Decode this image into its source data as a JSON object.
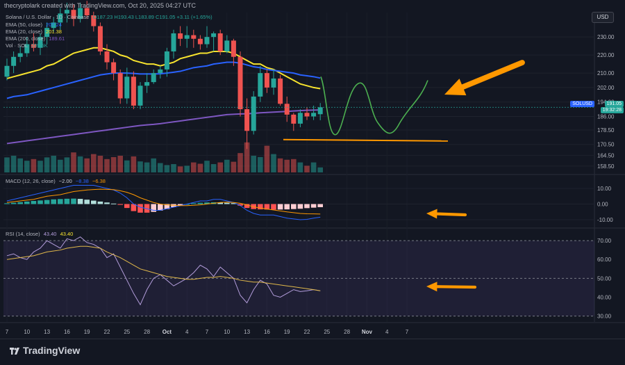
{
  "header": {
    "text": "thecryptolark created with TradingView.com, Oct 20, 2025 04:27 UTC"
  },
  "toolbar": {
    "currency_label": "USD"
  },
  "symbol": {
    "title": "Solana / U.S. Dollar · 1D · Coinbase",
    "ohlc_text": "O187.23 H193.43 L183.89 C191.05 +3.11 (+1.65%)"
  },
  "indicators": [
    {
      "label": "EMA (50, close)",
      "value": "207.24",
      "color": "#2962ff"
    },
    {
      "label": "EMA (20, close)",
      "value": "201.38",
      "color": "#f7e32e"
    },
    {
      "label": "EMA (200, close)",
      "value": "189.61",
      "color": "#7e57c2"
    },
    {
      "label": "Vol · SOL",
      "value": "209.5K",
      "color": "#26a69a"
    }
  ],
  "price_tag": {
    "symbol": "SOLUSD",
    "price": "191.05",
    "countdown": "19:32:28"
  },
  "macd_legend": {
    "label": "MACD (12, 26, close)",
    "values": [
      "−2.00",
      "−8.38",
      "−6.38"
    ],
    "colors": [
      "#d1d4dc",
      "#2962ff",
      "#ff9800"
    ]
  },
  "rsi_legend": {
    "label": "RSI (14, close)",
    "values": [
      "43.40",
      "43.40"
    ],
    "colors": [
      "#b39ddb",
      "#f7e32e"
    ]
  },
  "footer": {
    "brand": "TradingView"
  },
  "chart_data": [
    {
      "type": "candlestick",
      "title": "Solana / U.S. Dollar · 1D · Coinbase",
      "xlabel": "",
      "ylabel": "",
      "x_ticks": [
        "7",
        "10",
        "13",
        "16",
        "19",
        "22",
        "25",
        "28",
        "Oct",
        "4",
        "7",
        "10",
        "13",
        "16",
        "19",
        "22",
        "25",
        "28",
        "Nov",
        "4",
        "7"
      ],
      "y_ticks": [
        158.5,
        164.5,
        170.5,
        178.5,
        186.0,
        194.0,
        202.0,
        210.0,
        220.0,
        230.0
      ],
      "ylim": [
        155,
        242
      ],
      "candles": [
        {
          "o": 208,
          "h": 218,
          "l": 206,
          "c": 214
        },
        {
          "o": 214,
          "h": 222,
          "l": 210,
          "c": 219
        },
        {
          "o": 219,
          "h": 225,
          "l": 216,
          "c": 221
        },
        {
          "o": 221,
          "h": 230,
          "l": 219,
          "c": 226
        },
        {
          "o": 226,
          "h": 232,
          "l": 222,
          "c": 224
        },
        {
          "o": 224,
          "h": 232,
          "l": 220,
          "c": 230
        },
        {
          "o": 230,
          "h": 238,
          "l": 226,
          "c": 235
        },
        {
          "o": 235,
          "h": 241,
          "l": 233,
          "c": 238
        },
        {
          "o": 238,
          "h": 246,
          "l": 234,
          "c": 243
        },
        {
          "o": 243,
          "h": 249,
          "l": 238,
          "c": 245
        },
        {
          "o": 245,
          "h": 248,
          "l": 236,
          "c": 240
        },
        {
          "o": 240,
          "h": 249,
          "l": 238,
          "c": 246
        },
        {
          "o": 246,
          "h": 250,
          "l": 240,
          "c": 242
        },
        {
          "o": 242,
          "h": 244,
          "l": 233,
          "c": 236
        },
        {
          "o": 236,
          "h": 238,
          "l": 220,
          "c": 222
        },
        {
          "o": 222,
          "h": 226,
          "l": 212,
          "c": 216
        },
        {
          "o": 216,
          "h": 218,
          "l": 206,
          "c": 210
        },
        {
          "o": 210,
          "h": 212,
          "l": 193,
          "c": 196
        },
        {
          "o": 196,
          "h": 213,
          "l": 193,
          "c": 208
        },
        {
          "o": 208,
          "h": 211,
          "l": 190,
          "c": 192
        },
        {
          "o": 192,
          "h": 205,
          "l": 190,
          "c": 203
        },
        {
          "o": 203,
          "h": 210,
          "l": 199,
          "c": 205
        },
        {
          "o": 205,
          "h": 212,
          "l": 204,
          "c": 210
        },
        {
          "o": 210,
          "h": 214,
          "l": 207,
          "c": 212
        },
        {
          "o": 212,
          "h": 224,
          "l": 208,
          "c": 222
        },
        {
          "o": 222,
          "h": 234,
          "l": 218,
          "c": 232
        },
        {
          "o": 232,
          "h": 236,
          "l": 225,
          "c": 229
        },
        {
          "o": 229,
          "h": 236,
          "l": 224,
          "c": 231
        },
        {
          "o": 231,
          "h": 234,
          "l": 224,
          "c": 229
        },
        {
          "o": 229,
          "h": 231,
          "l": 223,
          "c": 226
        },
        {
          "o": 226,
          "h": 236,
          "l": 224,
          "c": 230
        },
        {
          "o": 230,
          "h": 233,
          "l": 222,
          "c": 232
        },
        {
          "o": 232,
          "h": 234,
          "l": 220,
          "c": 222
        },
        {
          "o": 222,
          "h": 231,
          "l": 221,
          "c": 228
        },
        {
          "o": 228,
          "h": 229,
          "l": 214,
          "c": 219
        },
        {
          "o": 219,
          "h": 222,
          "l": 186,
          "c": 190
        },
        {
          "o": 190,
          "h": 196,
          "l": 168,
          "c": 178
        },
        {
          "o": 178,
          "h": 200,
          "l": 176,
          "c": 197
        },
        {
          "o": 197,
          "h": 214,
          "l": 194,
          "c": 210
        },
        {
          "o": 210,
          "h": 212,
          "l": 199,
          "c": 202
        },
        {
          "o": 202,
          "h": 212,
          "l": 198,
          "c": 207
        },
        {
          "o": 207,
          "h": 209,
          "l": 192,
          "c": 193
        },
        {
          "o": 193,
          "h": 197,
          "l": 183,
          "c": 187
        },
        {
          "o": 187,
          "h": 188,
          "l": 178,
          "c": 182
        },
        {
          "o": 182,
          "h": 190,
          "l": 180,
          "c": 188
        },
        {
          "o": 188,
          "h": 191,
          "l": 184,
          "c": 186
        },
        {
          "o": 186,
          "h": 192,
          "l": 184,
          "c": 188
        },
        {
          "o": 187.23,
          "h": 193.43,
          "l": 183.89,
          "c": 191.05
        }
      ],
      "volume": [
        0.45,
        0.5,
        0.42,
        0.35,
        0.4,
        0.35,
        0.45,
        0.5,
        0.38,
        0.45,
        0.6,
        0.48,
        0.42,
        0.55,
        0.5,
        0.4,
        0.46,
        0.5,
        0.36,
        0.48,
        0.33,
        0.3,
        0.42,
        0.28,
        0.22,
        0.25,
        0.18,
        0.2,
        0.3,
        0.26,
        0.35,
        0.25,
        0.3,
        0.38,
        0.32,
        0.58,
        0.9,
        0.5,
        0.46,
        0.8,
        0.55,
        0.42,
        0.38,
        0.4,
        0.3,
        0.2,
        0.3,
        0.15
      ],
      "series": [
        {
          "name": "EMA (20, close)",
          "values": [
            207,
            208,
            209,
            210,
            211,
            212,
            214,
            215,
            217,
            219,
            221,
            222,
            223,
            224,
            224,
            223,
            222,
            220,
            219,
            217,
            216,
            215,
            215,
            214,
            215,
            216,
            218,
            219,
            220,
            221,
            221,
            222,
            222,
            222,
            221,
            219,
            217,
            215,
            215,
            213,
            212,
            210,
            208,
            206,
            204,
            203,
            202,
            201.38
          ]
        },
        {
          "name": "EMA (50, close)",
          "values": [
            196,
            197,
            197.5,
            198,
            199,
            200,
            201,
            202,
            203,
            204,
            205,
            206,
            207,
            208,
            209,
            209.5,
            210,
            210,
            210,
            209.8,
            209.5,
            209.5,
            209.5,
            209.6,
            210,
            210.5,
            211,
            212,
            213,
            213.5,
            214,
            215,
            215.5,
            216,
            216,
            215.5,
            214.5,
            213.5,
            213,
            212,
            211.5,
            211,
            210.5,
            210,
            209,
            208.5,
            208,
            207.24
          ]
        },
        {
          "name": "EMA (200, close)",
          "values": [
            171,
            171.5,
            172,
            172.5,
            173,
            173.5,
            174,
            174.5,
            175,
            175.5,
            176,
            176.5,
            177,
            177.5,
            178,
            178.5,
            179,
            179.5,
            180,
            180.5,
            181,
            181.3,
            181.6,
            182,
            182.5,
            183,
            183.5,
            184,
            184.5,
            185,
            185.5,
            186,
            186.5,
            187,
            187.2,
            187.4,
            187.5,
            187.7,
            188,
            188.2,
            188.4,
            188.6,
            188.8,
            189,
            189.2,
            189.4,
            189.5,
            189.61
          ]
        }
      ]
    },
    {
      "type": "bar",
      "title": "MACD (12, 26, close)",
      "y_ticks": [
        10.0,
        0.0,
        -10.0
      ],
      "ylim": [
        -14,
        14
      ],
      "series": [
        {
          "name": "Histogram",
          "values": [
            0.5,
            0.8,
            1.2,
            1.6,
            2.0,
            2.3,
            2.6,
            3.0,
            3.2,
            3.4,
            3.5,
            3.3,
            2.8,
            2.2,
            1.6,
            1.0,
            0.3,
            -0.5,
            -2.5,
            -4.5,
            -5.5,
            -5.5,
            -5.0,
            -4.2,
            -3.2,
            -2.0,
            -1.0,
            0.0,
            0.5,
            0.8,
            1.0,
            1.1,
            1.0,
            0.8,
            0.6,
            -1.0,
            -2.5,
            -3.2,
            -3.4,
            -3.5,
            -3.6,
            -3.5,
            -3.4,
            -3.2,
            -3.0,
            -2.6,
            -2.3,
            -2.0
          ]
        },
        {
          "name": "MACD",
          "values": [
            2,
            3,
            4,
            5,
            6,
            7,
            8,
            9,
            10,
            11,
            12,
            12,
            12,
            12,
            11,
            10,
            9,
            7,
            4,
            0,
            -2,
            -3,
            -4,
            -4,
            -3,
            -2,
            -1,
            0,
            1,
            2,
            2,
            3,
            3,
            2,
            1,
            -1,
            -4,
            -6,
            -7,
            -7,
            -7,
            -8,
            -9,
            -9.5,
            -10,
            -9.8,
            -9,
            -8.38
          ]
        },
        {
          "name": "Signal",
          "values": [
            1,
            1.5,
            2,
            2.5,
            3,
            4,
            5,
            5.5,
            6,
            7,
            8,
            8.5,
            9,
            9.3,
            9.5,
            9.4,
            9.2,
            8.5,
            7.5,
            6,
            4,
            2.5,
            1,
            0,
            -0.5,
            -0.8,
            -1,
            -1,
            -0.8,
            -0.5,
            0,
            0.5,
            1,
            1.2,
            1,
            0.5,
            -0.5,
            -1.8,
            -2.5,
            -3.2,
            -3.8,
            -4.4,
            -5,
            -5.5,
            -6,
            -6.2,
            -6.3,
            -6.38
          ]
        }
      ]
    },
    {
      "type": "line",
      "title": "RSI (14, close)",
      "y_ticks": [
        70.0,
        60.0,
        50.0,
        40.0,
        30.0
      ],
      "ylim": [
        28,
        73
      ],
      "series": [
        {
          "name": "RSI",
          "values": [
            62,
            63,
            61,
            60,
            64,
            66,
            70,
            68,
            66,
            71,
            70,
            72,
            69,
            68,
            66,
            61,
            63,
            56,
            49,
            42,
            36,
            44,
            50,
            52,
            49,
            46,
            48,
            50,
            53,
            57,
            55,
            51,
            56,
            53,
            50,
            41,
            37,
            44,
            49,
            47,
            41,
            40,
            42,
            44,
            43,
            43.4,
            44,
            43.4
          ]
        },
        {
          "name": "RSI-based MA",
          "values": [
            60,
            60.5,
            61,
            61.5,
            62,
            63,
            64,
            64.5,
            65,
            66,
            66.5,
            67,
            67,
            66.5,
            66,
            64,
            62.5,
            61,
            59,
            57,
            55,
            54,
            53,
            52,
            51,
            50.5,
            50,
            49.5,
            49.5,
            50,
            50.5,
            50.5,
            51,
            50.5,
            50,
            49,
            48.5,
            48,
            48,
            47.5,
            47,
            46.5,
            46,
            45.5,
            45,
            44.5,
            44,
            43.4
          ]
        }
      ]
    }
  ]
}
